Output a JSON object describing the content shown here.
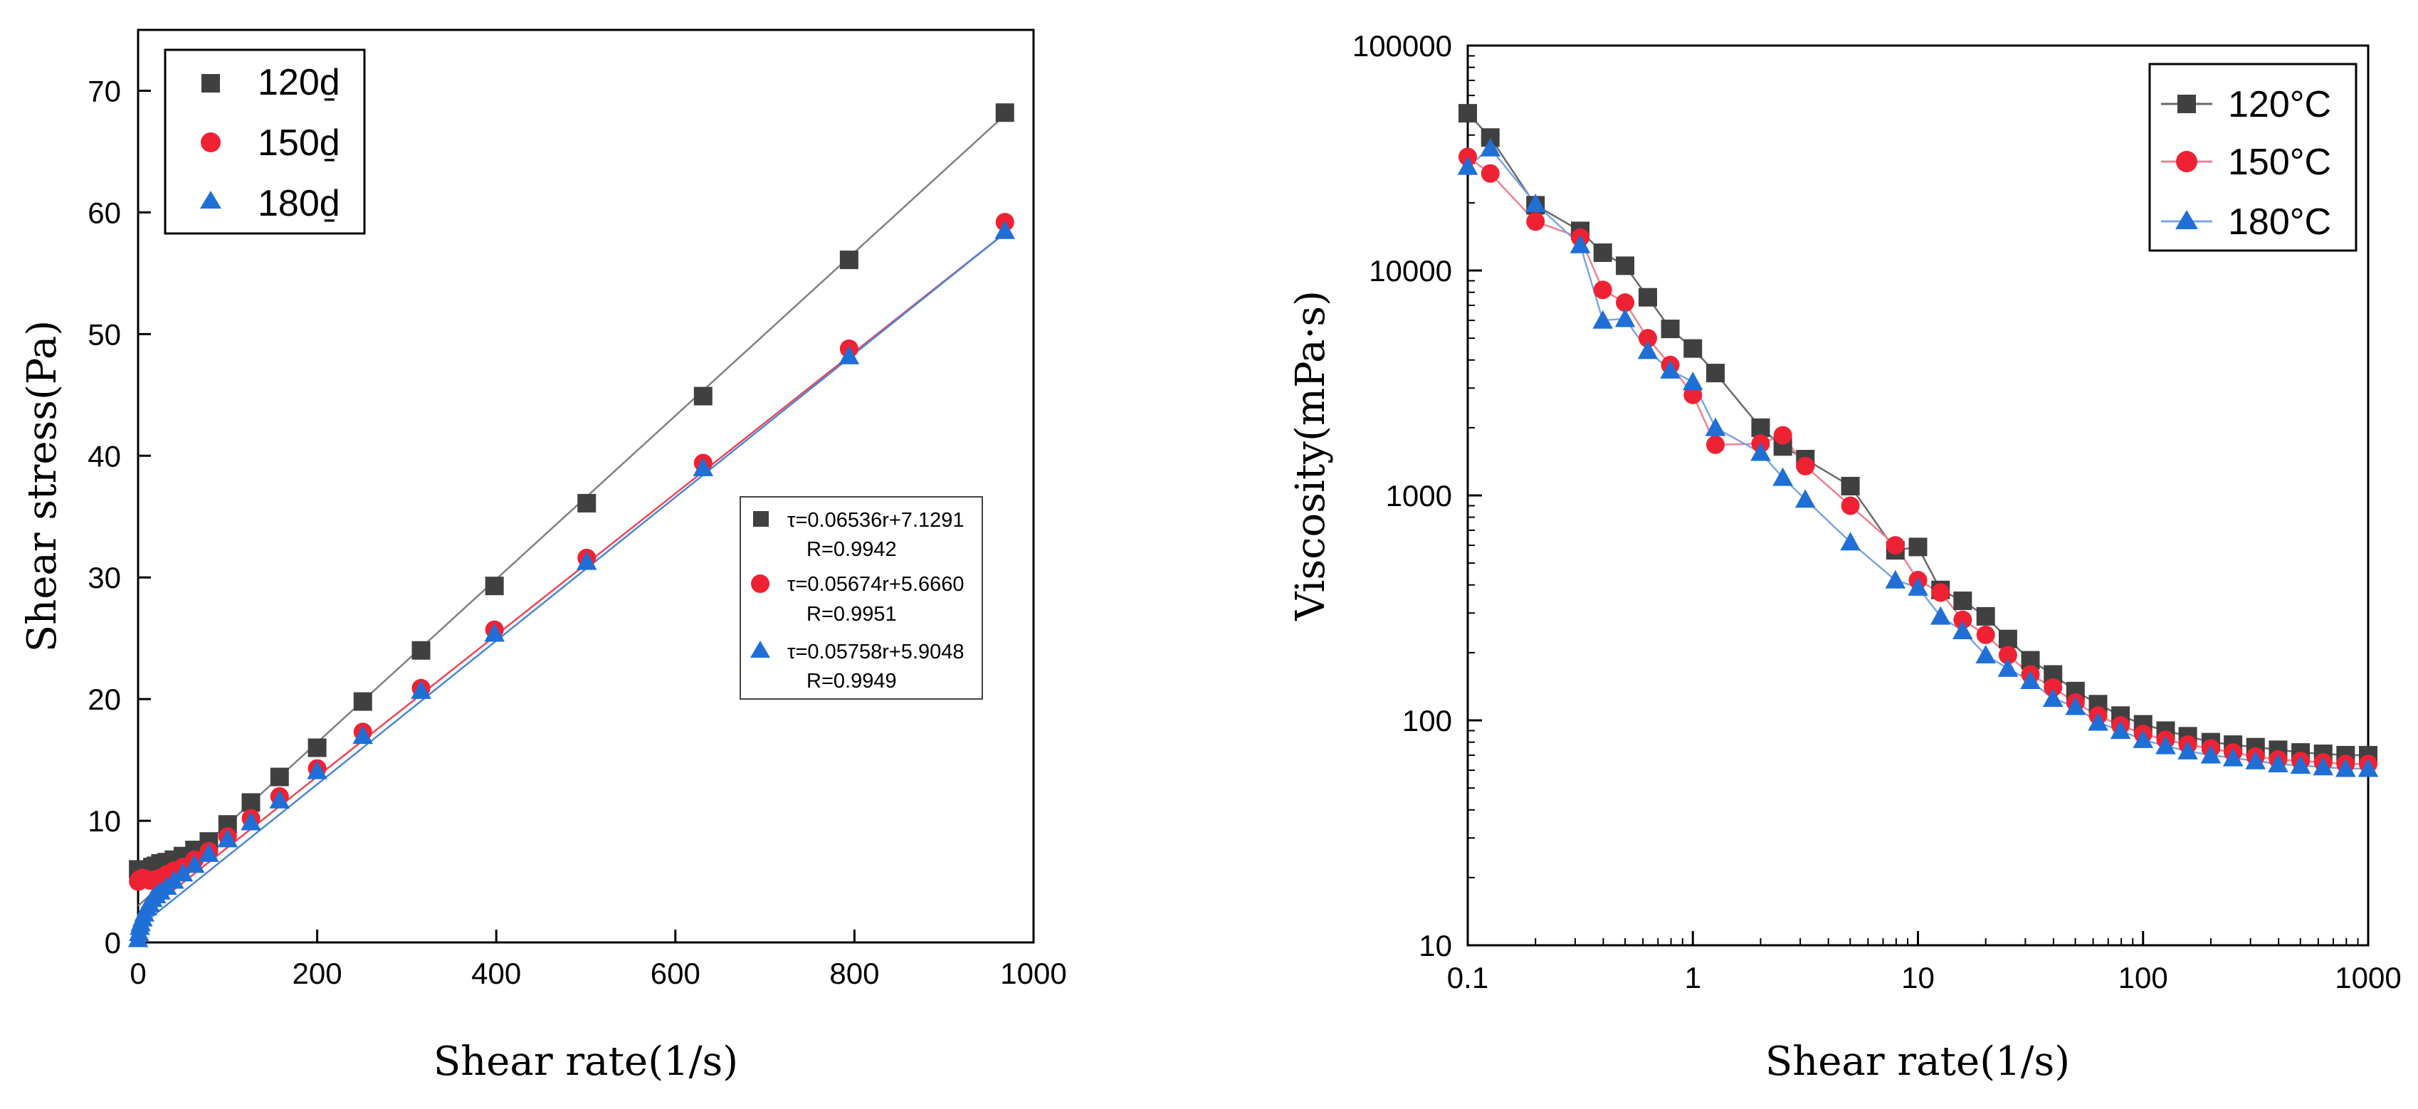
{
  "chart_data": [
    {
      "id": "left",
      "type": "scatter",
      "xlabel": "Shear rate(1/s)",
      "ylabel": "Shear stress(Pa)",
      "xlim": [
        0,
        1000
      ],
      "ylim": [
        0,
        75
      ],
      "xticks": [
        "0",
        "200",
        "400",
        "600",
        "800",
        "1000"
      ],
      "yticks": [
        "0",
        "10",
        "20",
        "30",
        "40",
        "50",
        "60",
        "70"
      ],
      "grid": false,
      "legend_position": "top-left",
      "legend": [
        "120ḏ",
        "150ḏ",
        "180ḏ"
      ],
      "fit_annotations": [
        {
          "eq": "τ=0.06536r+7.1291",
          "r": "R=0.9942"
        },
        {
          "eq": "τ=0.05674r+5.6660",
          "r": "R=0.9951"
        },
        {
          "eq": "τ=0.05758r+5.9048",
          "r": "R=0.9949"
        }
      ],
      "series": [
        {
          "name": "120ḏ",
          "marker": "square",
          "color": "#404040",
          "line_color": "#808080",
          "x": [
            0.1,
            1,
            2,
            3,
            5,
            7,
            10,
            13,
            16,
            20,
            25,
            32,
            40,
            50,
            63,
            79,
            100,
            126,
            158,
            200,
            251,
            316,
            398,
            501,
            631,
            794,
            968
          ],
          "y": [
            6.0,
            5.9,
            5.8,
            5.8,
            5.7,
            5.7,
            5.8,
            6.0,
            6.2,
            6.3,
            6.5,
            6.6,
            6.8,
            7.1,
            7.6,
            8.3,
            9.7,
            11.5,
            13.6,
            16.0,
            19.8,
            24.0,
            29.3,
            36.1,
            44.9,
            56.1,
            68.2
          ],
          "fit_line": [
            [
              0,
              3.0
            ],
            [
              968,
              68.0
            ]
          ]
        },
        {
          "name": "150ḏ",
          "marker": "circle",
          "color": "#ee2233",
          "line_color": "#ee4455",
          "x": [
            0.1,
            1,
            2,
            3,
            5,
            7,
            10,
            13,
            16,
            20,
            25,
            32,
            40,
            50,
            63,
            79,
            100,
            126,
            158,
            200,
            251,
            316,
            398,
            501,
            631,
            794,
            968
          ],
          "y": [
            5.0,
            5.1,
            5.2,
            5.2,
            5.3,
            5.2,
            5.2,
            5.1,
            5.1,
            5.2,
            5.3,
            5.6,
            5.9,
            6.2,
            6.8,
            7.5,
            8.7,
            10.2,
            12.0,
            14.3,
            17.3,
            20.9,
            25.7,
            31.6,
            39.4,
            48.8,
            59.2
          ],
          "fit_line": [
            [
              0,
              2.0
            ],
            [
              968,
              58.3
            ]
          ]
        },
        {
          "name": "180ḏ",
          "marker": "triangle",
          "color": "#1f6fd6",
          "line_color": "#4a86d8",
          "x": [
            0.1,
            1,
            2,
            3,
            5,
            7,
            10,
            13,
            16,
            20,
            25,
            32,
            40,
            50,
            63,
            79,
            100,
            126,
            158,
            200,
            251,
            316,
            398,
            501,
            631,
            794,
            968
          ],
          "y": [
            0.3,
            0.8,
            1.3,
            1.6,
            2.0,
            2.4,
            2.9,
            3.2,
            3.6,
            3.9,
            4.2,
            4.6,
            5.1,
            5.7,
            6.4,
            7.3,
            8.5,
            9.9,
            11.7,
            14.1,
            17.0,
            20.7,
            25.4,
            31.3,
            39.0,
            48.2,
            58.5
          ],
          "fit_line": [
            [
              0,
              1.2
            ],
            [
              968,
              58.3
            ]
          ]
        }
      ]
    },
    {
      "id": "right",
      "type": "line",
      "xscale": "log",
      "yscale": "log",
      "xlabel": "Shear rate(1/s)",
      "ylabel": "Viscosity(mPa·s)",
      "xlim": [
        0.1,
        1000
      ],
      "ylim": [
        10,
        100000
      ],
      "xticks": [
        "0.1",
        "1",
        "10",
        "100",
        "1000"
      ],
      "yticks": [
        "10",
        "100",
        "1000",
        "10000",
        "100000"
      ],
      "grid": false,
      "legend_position": "top-right",
      "legend": [
        "120°C",
        "150°C",
        "180°C"
      ],
      "series": [
        {
          "name": "120°C",
          "marker": "square",
          "color": "#404040",
          "line_color": "#6a6a6a",
          "x": [
            0.1,
            0.126,
            0.2,
            0.316,
            0.398,
            0.5,
            0.631,
            0.794,
            1,
            1.26,
            2,
            2.51,
            3.16,
            5.01,
            7.94,
            10,
            12.6,
            15.8,
            20,
            25.1,
            31.6,
            39.8,
            50.1,
            63.1,
            79.4,
            100,
            126,
            158,
            200,
            251,
            316,
            398,
            501,
            631,
            794,
            1000
          ],
          "y": [
            50000,
            39000,
            19500,
            15000,
            12000,
            10500,
            7600,
            5500,
            4500,
            3500,
            2000,
            1650,
            1450,
            1100,
            570,
            590,
            380,
            340,
            290,
            230,
            185,
            160,
            135,
            118,
            105,
            96,
            90,
            85,
            80,
            78,
            76,
            74,
            72,
            71,
            70,
            70
          ]
        },
        {
          "name": "150°C",
          "marker": "circle",
          "color": "#ee2233",
          "line_color": "#f08090",
          "x": [
            0.1,
            0.126,
            0.2,
            0.316,
            0.398,
            0.5,
            0.631,
            0.794,
            1,
            1.26,
            2,
            2.51,
            3.16,
            5.01,
            7.94,
            10,
            12.6,
            15.8,
            20,
            25.1,
            31.6,
            39.8,
            50.1,
            63.1,
            79.4,
            100,
            126,
            158,
            200,
            251,
            316,
            398,
            501,
            631,
            794,
            1000
          ],
          "y": [
            32000,
            27000,
            16500,
            14000,
            8200,
            7200,
            5000,
            3800,
            2800,
            1680,
            1700,
            1850,
            1350,
            900,
            600,
            420,
            370,
            280,
            240,
            195,
            160,
            140,
            120,
            105,
            95,
            87,
            82,
            78,
            75,
            72,
            69,
            67,
            66,
            65,
            64,
            64
          ]
        },
        {
          "name": "180°C",
          "marker": "triangle",
          "color": "#1f6fd6",
          "line_color": "#7aa5e0",
          "x": [
            0.1,
            0.126,
            0.2,
            0.316,
            0.398,
            0.5,
            0.631,
            0.794,
            1,
            1.26,
            2,
            2.51,
            3.16,
            5.01,
            7.94,
            10,
            12.6,
            15.8,
            20,
            25.1,
            31.6,
            39.8,
            50.1,
            63.1,
            79.4,
            100,
            126,
            158,
            200,
            251,
            316,
            398,
            501,
            631,
            794,
            1000
          ],
          "y": [
            29000,
            35000,
            19800,
            13000,
            6000,
            6100,
            4400,
            3600,
            3200,
            2000,
            1550,
            1200,
            960,
            620,
            420,
            390,
            290,
            250,
            195,
            170,
            150,
            125,
            115,
            98,
            90,
            82,
            77,
            73,
            70,
            68,
            66,
            64,
            63,
            62,
            61,
            61
          ]
        }
      ]
    }
  ]
}
